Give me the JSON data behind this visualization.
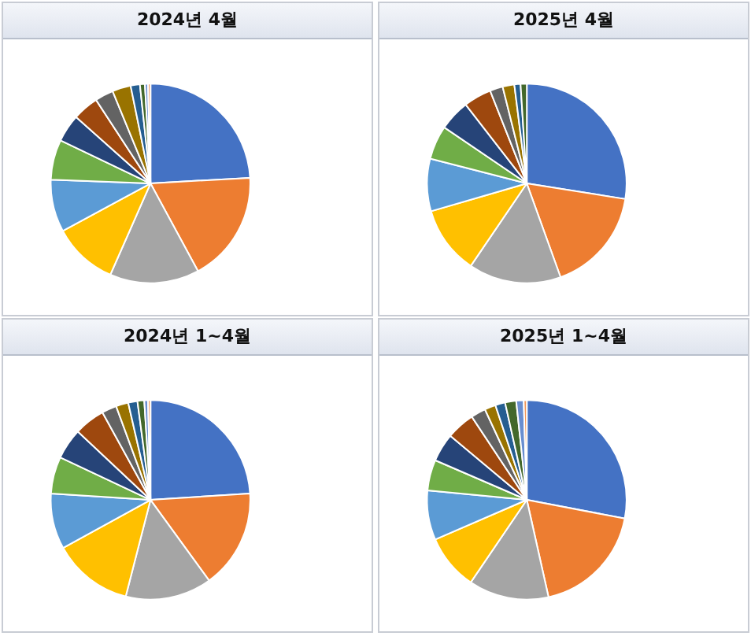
{
  "chart_data": [
    {
      "type": "pie",
      "title": "2024년 4월",
      "categories": [
        null,
        null,
        null,
        null,
        null,
        null,
        null,
        null,
        null,
        null,
        null,
        null,
        null,
        null
      ],
      "values": [
        24.1,
        18,
        14.5,
        10.5,
        8.5,
        6.5,
        4.5,
        4.2,
        3,
        3,
        1.5,
        0.8,
        0.5,
        0.4
      ],
      "colors": [
        "#4472c4",
        "#ed7d31",
        "#a5a5a5",
        "#ffc000",
        "#5b9bd5",
        "#70ad47",
        "#264478",
        "#9e480e",
        "#636363",
        "#997300",
        "#255e91",
        "#43682b",
        "#698ed0",
        "#f1975a"
      ]
    },
    {
      "type": "pie",
      "title": "2025년 4월",
      "categories": [
        null,
        null,
        null,
        null,
        null,
        null,
        null,
        null,
        null,
        null,
        null,
        null
      ],
      "values": [
        27.5,
        17,
        15,
        11,
        8.5,
        5.5,
        5,
        4.5,
        2.1,
        1.9,
        1,
        1
      ],
      "colors": [
        "#4472c4",
        "#ed7d31",
        "#a5a5a5",
        "#ffc000",
        "#5b9bd5",
        "#70ad47",
        "#264478",
        "#9e480e",
        "#636363",
        "#997300",
        "#255e91",
        "#43682b"
      ]
    },
    {
      "type": "pie",
      "title": "2024년 1~4월",
      "categories": [
        null,
        null,
        null,
        null,
        null,
        null,
        null,
        null,
        null,
        null,
        null,
        null,
        null,
        null
      ],
      "values": [
        24,
        16,
        14,
        13,
        9,
        6,
        5,
        5,
        2.4,
        2,
        1.5,
        1.1,
        0.6,
        0.4
      ],
      "colors": [
        "#4472c4",
        "#ed7d31",
        "#a5a5a5",
        "#ffc000",
        "#5b9bd5",
        "#70ad47",
        "#264478",
        "#9e480e",
        "#636363",
        "#997300",
        "#255e91",
        "#43682b",
        "#698ed0",
        "#f1975a"
      ]
    },
    {
      "type": "pie",
      "title": "2025년 1~4월",
      "categories": [
        null,
        null,
        null,
        null,
        null,
        null,
        null,
        null,
        null,
        null,
        null,
        null,
        null,
        null
      ],
      "values": [
        28,
        18.5,
        13,
        9,
        8,
        5,
        4.6,
        4.6,
        2.4,
        1.8,
        1.6,
        1.8,
        1.2,
        0.5
      ],
      "colors": [
        "#4472c4",
        "#ed7d31",
        "#a5a5a5",
        "#ffc000",
        "#5b9bd5",
        "#70ad47",
        "#264478",
        "#9e480e",
        "#636363",
        "#997300",
        "#255e91",
        "#43682b",
        "#698ed0",
        "#f1975a"
      ]
    }
  ]
}
